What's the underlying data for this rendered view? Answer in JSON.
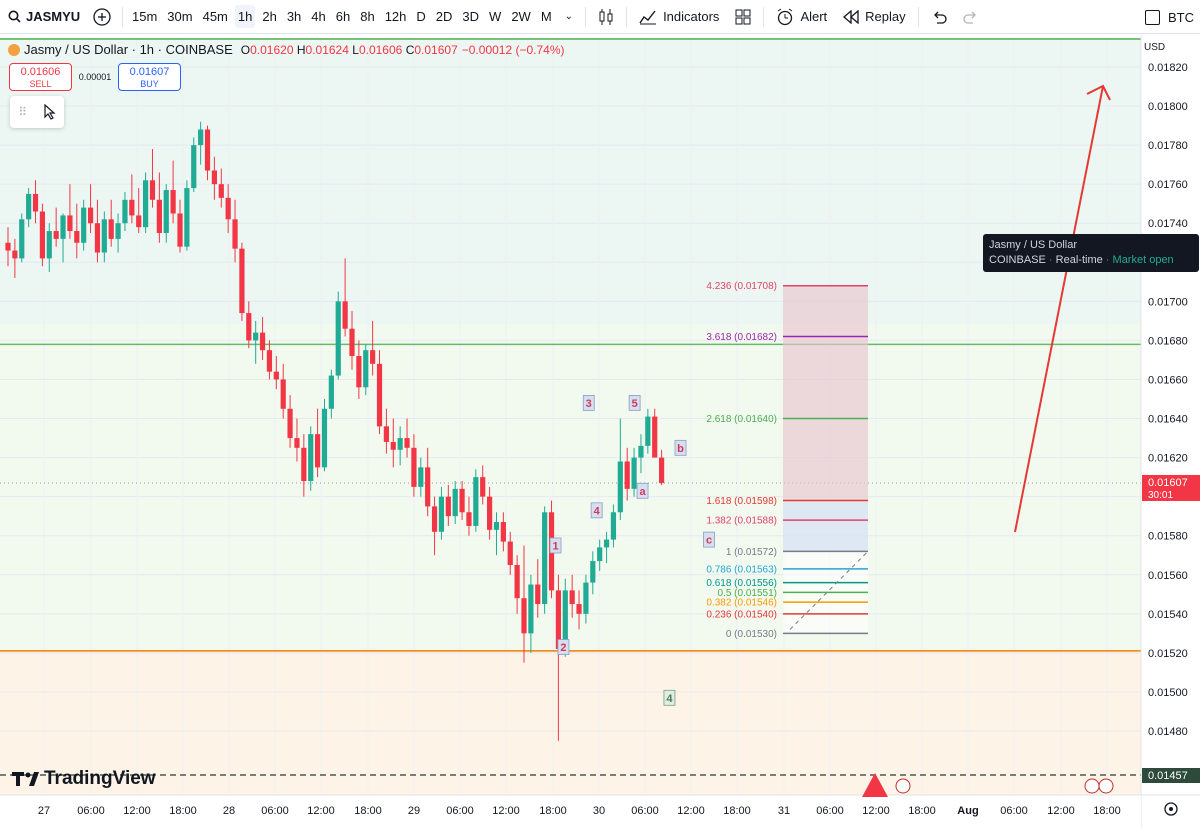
{
  "toolbar": {
    "symbol": "JASMYU",
    "timeframes": [
      "15m",
      "30m",
      "45m",
      "1h",
      "2h",
      "3h",
      "4h",
      "6h",
      "8h",
      "12h",
      "D",
      "2D",
      "3D",
      "W",
      "2W",
      "M"
    ],
    "active_timeframe": "1h",
    "indicators_label": "Indicators",
    "alert_label": "Alert",
    "replay_label": "Replay",
    "compare_label": "BTC"
  },
  "legend": {
    "title": "Jasmy / US Dollar · 1h · COINBASE",
    "o_label": "O",
    "o": "0.01620",
    "h_label": "H",
    "h": "0.01624",
    "l_label": "L",
    "l": "0.01606",
    "c_label": "C",
    "c": "0.01607",
    "change": "−0.00012 (−0.74%)"
  },
  "trade": {
    "sell_price": "0.01606",
    "sell_label": "SELL",
    "spread": "0.00001",
    "buy_price": "0.01607",
    "buy_label": "BUY"
  },
  "price_axis": {
    "currency": "USD",
    "labels": [
      "0.01820",
      "0.01800",
      "0.01780",
      "0.01760",
      "0.01740",
      "0.01720",
      "0.01700",
      "0.01680",
      "0.01660",
      "0.01640",
      "0.01620",
      "0.01600",
      "0.01580",
      "0.01560",
      "0.01540",
      "0.01520",
      "0.01500",
      "0.01480"
    ],
    "current_price": "0.01607",
    "countdown": "30:01",
    "dashed_price": "0.01457"
  },
  "time_axis": {
    "labels": [
      "27",
      "06:00",
      "12:00",
      "18:00",
      "28",
      "06:00",
      "12:00",
      "18:00",
      "29",
      "06:00",
      "12:00",
      "18:00",
      "30",
      "06:00",
      "12:00",
      "18:00",
      "31",
      "06:00",
      "12:00",
      "18:00",
      "Aug",
      "06:00",
      "12:00",
      "18:00"
    ]
  },
  "tooltip": {
    "line1": "Jasmy / US Dollar",
    "exchange": "COINBASE",
    "mode": "Real-time",
    "status": "Market open"
  },
  "fib_levels": [
    {
      "label": "4.236 (0.01708)",
      "price": 0.01708,
      "color": "#e0436b"
    },
    {
      "label": "3.618 (0.01682)",
      "price": 0.01682,
      "color": "#9c27b0"
    },
    {
      "label": "2.618 (0.01640)",
      "price": 0.0164,
      "color": "#4caf50"
    },
    {
      "label": "1.618 (0.01598)",
      "price": 0.01598,
      "color": "#e53935"
    },
    {
      "label": "1.382 (0.01588)",
      "price": 0.01588,
      "color": "#e0436b"
    },
    {
      "label": "1 (0.01572)",
      "price": 0.01572,
      "color": "#787b86"
    },
    {
      "label": "0.786 (0.01563)",
      "price": 0.01563,
      "color": "#26a6d8"
    },
    {
      "label": "0.618 (0.01556)",
      "price": 0.01556,
      "color": "#009688"
    },
    {
      "label": "0.5 (0.01551)",
      "price": 0.01551,
      "color": "#4caf50"
    },
    {
      "label": "0.382 (0.01546)",
      "price": 0.01546,
      "color": "#ff9800"
    },
    {
      "label": "0.236 (0.01540)",
      "price": 0.0154,
      "color": "#e53935"
    },
    {
      "label": "0 (0.01530)",
      "price": 0.0153,
      "color": "#787b86"
    }
  ],
  "wave_labels": [
    {
      "text": "1",
      "t": 34.6,
      "price": 0.01575
    },
    {
      "text": "2",
      "t": 35.1,
      "price": 0.01523
    },
    {
      "text": "3",
      "t": 36.7,
      "price": 0.01648
    },
    {
      "text": "4",
      "t": 37.2,
      "price": 0.01593
    },
    {
      "text": "5",
      "t": 39.6,
      "price": 0.01648
    },
    {
      "text": "a",
      "t": 40.1,
      "price": 0.01603
    },
    {
      "text": "b",
      "t": 42.5,
      "price": 0.01625
    },
    {
      "text": "c",
      "t": 44.3,
      "price": 0.01578
    },
    {
      "text": "4",
      "t": 41.8,
      "price": 0.01497
    }
  ],
  "horizontal_lines": [
    {
      "price": 0.01688,
      "color": "#4caf50"
    },
    {
      "price": 0.01678,
      "color": "#66bb6a"
    },
    {
      "price": 0.01521,
      "color": "#f57c00"
    }
  ],
  "watermark": "TradingView",
  "candles": [
    [
      0.0173,
      0.01738,
      0.01718,
      0.01726
    ],
    [
      0.01726,
      0.01732,
      0.01712,
      0.01722
    ],
    [
      0.01722,
      0.01745,
      0.0172,
      0.01742
    ],
    [
      0.01742,
      0.01758,
      0.01738,
      0.01755
    ],
    [
      0.01755,
      0.01762,
      0.0174,
      0.01746
    ],
    [
      0.01746,
      0.0175,
      0.01718,
      0.01722
    ],
    [
      0.01722,
      0.0174,
      0.01715,
      0.01736
    ],
    [
      0.01736,
      0.01748,
      0.01728,
      0.01732
    ],
    [
      0.01732,
      0.01745,
      0.0172,
      0.01744
    ],
    [
      0.01744,
      0.0176,
      0.01732,
      0.01736
    ],
    [
      0.01736,
      0.0175,
      0.01722,
      0.0173
    ],
    [
      0.0173,
      0.01752,
      0.01726,
      0.01748
    ],
    [
      0.01748,
      0.0176,
      0.01735,
      0.0174
    ],
    [
      0.0174,
      0.01752,
      0.0172,
      0.01725
    ],
    [
      0.01725,
      0.01746,
      0.0172,
      0.01742
    ],
    [
      0.01742,
      0.01752,
      0.01728,
      0.01732
    ],
    [
      0.01732,
      0.01745,
      0.01725,
      0.0174
    ],
    [
      0.0174,
      0.01756,
      0.01736,
      0.01752
    ],
    [
      0.01752,
      0.01765,
      0.0174,
      0.01744
    ],
    [
      0.01744,
      0.01758,
      0.01735,
      0.01738
    ],
    [
      0.01738,
      0.01766,
      0.01735,
      0.01762
    ],
    [
      0.01762,
      0.01778,
      0.01748,
      0.01752
    ],
    [
      0.01752,
      0.01766,
      0.0173,
      0.01735
    ],
    [
      0.01735,
      0.0176,
      0.0173,
      0.01757
    ],
    [
      0.01757,
      0.01772,
      0.0174,
      0.01745
    ],
    [
      0.01745,
      0.01752,
      0.01725,
      0.01728
    ],
    [
      0.01728,
      0.01762,
      0.01726,
      0.01758
    ],
    [
      0.01758,
      0.01784,
      0.01756,
      0.0178
    ],
    [
      0.0178,
      0.01792,
      0.0177,
      0.01788
    ],
    [
      0.01788,
      0.0179,
      0.01762,
      0.01767
    ],
    [
      0.01767,
      0.01774,
      0.01752,
      0.0176
    ],
    [
      0.0176,
      0.01768,
      0.01748,
      0.01753
    ],
    [
      0.01753,
      0.0176,
      0.01735,
      0.01742
    ],
    [
      0.01742,
      0.01752,
      0.0172,
      0.01727
    ],
    [
      0.01727,
      0.0173,
      0.0169,
      0.01694
    ],
    [
      0.01694,
      0.017,
      0.01676,
      0.0168
    ],
    [
      0.0168,
      0.0169,
      0.01668,
      0.01684
    ],
    [
      0.01684,
      0.01692,
      0.0167,
      0.01675
    ],
    [
      0.01675,
      0.0168,
      0.0166,
      0.01664
    ],
    [
      0.01664,
      0.01672,
      0.01655,
      0.0166
    ],
    [
      0.0166,
      0.01668,
      0.0164,
      0.01645
    ],
    [
      0.01645,
      0.01652,
      0.01625,
      0.0163
    ],
    [
      0.0163,
      0.0164,
      0.01618,
      0.01625
    ],
    [
      0.01625,
      0.01632,
      0.016,
      0.01608
    ],
    [
      0.01608,
      0.01636,
      0.01603,
      0.01632
    ],
    [
      0.01632,
      0.01645,
      0.0161,
      0.01615
    ],
    [
      0.01615,
      0.0165,
      0.01613,
      0.01645
    ],
    [
      0.01645,
      0.01665,
      0.0164,
      0.01662
    ],
    [
      0.01662,
      0.01705,
      0.0166,
      0.017
    ],
    [
      0.017,
      0.01722,
      0.01682,
      0.01686
    ],
    [
      0.01686,
      0.01695,
      0.01665,
      0.01672
    ],
    [
      0.01672,
      0.0168,
      0.0165,
      0.01656
    ],
    [
      0.01656,
      0.01678,
      0.01652,
      0.01675
    ],
    [
      0.01675,
      0.0169,
      0.01662,
      0.01668
    ],
    [
      0.01668,
      0.01675,
      0.01632,
      0.01636
    ],
    [
      0.01636,
      0.01645,
      0.01622,
      0.01628
    ],
    [
      0.01628,
      0.0164,
      0.01615,
      0.01624
    ],
    [
      0.01624,
      0.01636,
      0.01616,
      0.0163
    ],
    [
      0.0163,
      0.0164,
      0.0162,
      0.01625
    ],
    [
      0.01625,
      0.01632,
      0.016,
      0.01605
    ],
    [
      0.01605,
      0.0162,
      0.016,
      0.01615
    ],
    [
      0.01615,
      0.01625,
      0.0159,
      0.01595
    ],
    [
      0.01595,
      0.016,
      0.0157,
      0.01582
    ],
    [
      0.01582,
      0.01605,
      0.01578,
      0.016
    ],
    [
      0.016,
      0.01606,
      0.01585,
      0.0159
    ],
    [
      0.0159,
      0.01608,
      0.01586,
      0.01604
    ],
    [
      0.01604,
      0.01608,
      0.01588,
      0.01592
    ],
    [
      0.01592,
      0.016,
      0.0158,
      0.01585
    ],
    [
      0.01585,
      0.01614,
      0.01582,
      0.0161
    ],
    [
      0.0161,
      0.01616,
      0.01596,
      0.016
    ],
    [
      0.016,
      0.01605,
      0.01578,
      0.01583
    ],
    [
      0.01583,
      0.01592,
      0.0157,
      0.01587
    ],
    [
      0.01587,
      0.01592,
      0.01572,
      0.01577
    ],
    [
      0.01577,
      0.01582,
      0.0156,
      0.01565
    ],
    [
      0.01565,
      0.0157,
      0.0154,
      0.01548
    ],
    [
      0.01548,
      0.01575,
      0.01515,
      0.0153
    ],
    [
      0.0153,
      0.0156,
      0.0152,
      0.01555
    ],
    [
      0.01555,
      0.01568,
      0.01538,
      0.01545
    ],
    [
      0.01545,
      0.01595,
      0.0154,
      0.01592
    ],
    [
      0.01592,
      0.01598,
      0.01548,
      0.01552
    ],
    [
      0.01552,
      0.0156,
      0.01475,
      0.01522
    ],
    [
      0.01522,
      0.01558,
      0.01518,
      0.01552
    ],
    [
      0.01552,
      0.0156,
      0.01538,
      0.01545
    ],
    [
      0.01545,
      0.01552,
      0.01532,
      0.0154
    ],
    [
      0.0154,
      0.0156,
      0.01535,
      0.01556
    ],
    [
      0.01556,
      0.01572,
      0.0155,
      0.01567
    ],
    [
      0.01567,
      0.01578,
      0.01562,
      0.01574
    ],
    [
      0.01574,
      0.01582,
      0.01566,
      0.01578
    ],
    [
      0.01578,
      0.01596,
      0.01574,
      0.01592
    ],
    [
      0.01592,
      0.0164,
      0.01588,
      0.01618
    ],
    [
      0.01618,
      0.01625,
      0.01598,
      0.01604
    ],
    [
      0.01604,
      0.01625,
      0.016,
      0.0162
    ],
    [
      0.0162,
      0.01632,
      0.01612,
      0.01626
    ],
    [
      0.01626,
      0.01645,
      0.01622,
      0.01641
    ],
    [
      0.01641,
      0.01645,
      0.01622,
      0.0162
    ],
    [
      0.0162,
      0.01624,
      0.01606,
      0.01607
    ]
  ]
}
